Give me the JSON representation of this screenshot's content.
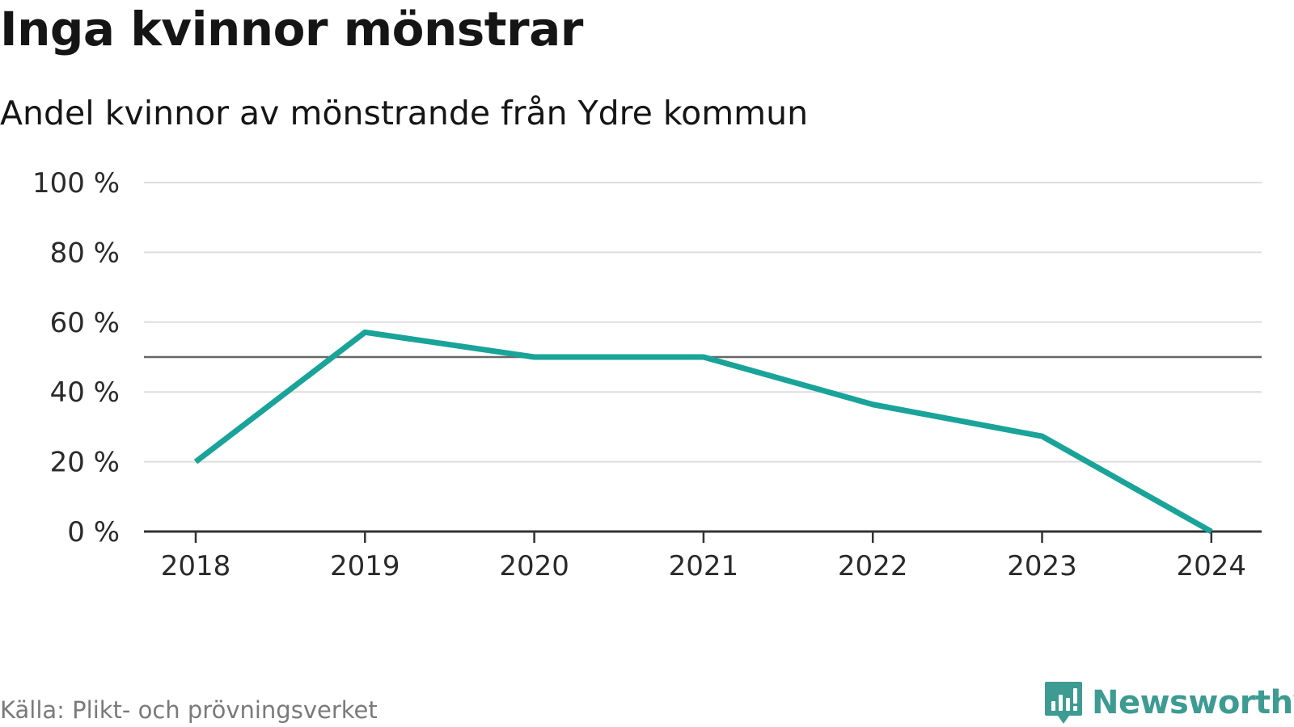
{
  "header": {
    "title": "Inga kvinnor mönstrar",
    "subtitle": "Andel kvinnor av mönstrande från Ydre kommun"
  },
  "footer": {
    "source": "Källa: Plikt- och prövningsverket",
    "brand": "Newsworthy"
  },
  "colors": {
    "line": "#1aa399",
    "reference_line": "#666666",
    "grid": "#dddddd",
    "axis": "#333333",
    "brand": "#3d9b92"
  },
  "chart_data": {
    "type": "line",
    "title": "Inga kvinnor mönstrar",
    "subtitle": "Andel kvinnor av mönstrande från Ydre kommun",
    "xlabel": "",
    "ylabel": "",
    "x": [
      "2018",
      "2019",
      "2020",
      "2021",
      "2022",
      "2023",
      "2024"
    ],
    "series": [
      {
        "name": "Andel kvinnor",
        "values": [
          20,
          57.1,
          50,
          50,
          36.4,
          27.3,
          0
        ]
      }
    ],
    "yticks": [
      0,
      20,
      40,
      60,
      80,
      100
    ],
    "ytick_labels": [
      "0 %",
      "20 %",
      "40 %",
      "60 %",
      "80 %",
      "100 %"
    ],
    "ylim": [
      0,
      100
    ],
    "reference_line": 50,
    "grid": true
  }
}
